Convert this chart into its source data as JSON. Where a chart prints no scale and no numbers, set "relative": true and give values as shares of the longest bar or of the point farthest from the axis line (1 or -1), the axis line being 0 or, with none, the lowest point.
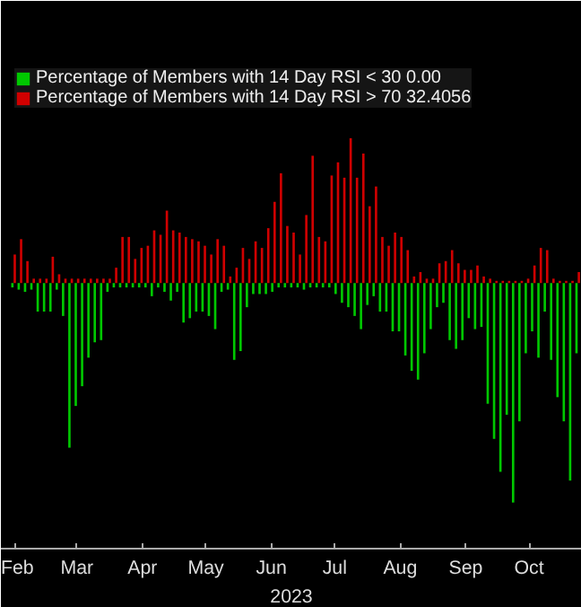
{
  "chart_data": {
    "type": "bar",
    "relative": true,
    "xlabel": "2023",
    "legend": "top left",
    "grid": false,
    "x": [
      "2023-02-14",
      "2023-02-17",
      "2023-02-20",
      "2023-02-23",
      "2023-02-26",
      "2023-03-01",
      "2023-03-04",
      "2023-03-07",
      "2023-03-10",
      "2023-03-13",
      "2023-03-16",
      "2023-03-19",
      "2023-03-22",
      "2023-03-25",
      "2023-03-28",
      "2023-03-31",
      "2023-04-03",
      "2023-04-06",
      "2023-04-09",
      "2023-04-12",
      "2023-04-15",
      "2023-04-18",
      "2023-04-21",
      "2023-04-24",
      "2023-04-27",
      "2023-04-30",
      "2023-05-03",
      "2023-05-06",
      "2023-05-09",
      "2023-05-12",
      "2023-05-15",
      "2023-05-18",
      "2023-05-21",
      "2023-05-24",
      "2023-05-27",
      "2023-05-30",
      "2023-06-02",
      "2023-06-05",
      "2023-06-08",
      "2023-06-11",
      "2023-06-14",
      "2023-06-17",
      "2023-06-20",
      "2023-06-23",
      "2023-06-26",
      "2023-06-29",
      "2023-07-02",
      "2023-07-05",
      "2023-07-08",
      "2023-07-11",
      "2023-07-14",
      "2023-07-17",
      "2023-07-20",
      "2023-07-23",
      "2023-07-26",
      "2023-07-29",
      "2023-08-01",
      "2023-08-04",
      "2023-08-07",
      "2023-08-10",
      "2023-08-13",
      "2023-08-16",
      "2023-08-19",
      "2023-08-22",
      "2023-08-25",
      "2023-08-28",
      "2023-08-31",
      "2023-09-03",
      "2023-09-06",
      "2023-09-09",
      "2023-09-12",
      "2023-09-15",
      "2023-09-18",
      "2023-09-21",
      "2023-09-24",
      "2023-09-27",
      "2023-09-30",
      "2023-10-03",
      "2023-10-06",
      "2023-10-09",
      "2023-10-12",
      "2023-10-15",
      "2023-10-18",
      "2023-10-21",
      "2023-10-24",
      "2023-10-27",
      "2023-10-30",
      "2023-11-02",
      "2023-11-05",
      "2023-11-08"
    ],
    "xlim": [
      "2023-02-08",
      "2023-11-10"
    ],
    "xticks": [
      {
        "value": "2023-02-15",
        "label": "Feb"
      },
      {
        "value": "2023-03-16",
        "label": "Mar"
      },
      {
        "value": "2023-04-16",
        "label": "Apr"
      },
      {
        "value": "2023-05-16",
        "label": "May"
      },
      {
        "value": "2023-06-16",
        "label": "Jun"
      },
      {
        "value": "2023-07-16",
        "label": "Jul"
      },
      {
        "value": "2023-08-16",
        "label": "Aug"
      },
      {
        "value": "2023-09-16",
        "label": "Sep"
      },
      {
        "value": "2023-10-16",
        "label": "Oct"
      }
    ],
    "series": [
      {
        "name": "Percentage of Members with 14 Day RSI < 30 0.00",
        "color": "#00c800",
        "values": [
          -0.02,
          -0.03,
          -0.04,
          -0.03,
          -0.13,
          -0.13,
          -0.13,
          -0.03,
          -0.15,
          -0.75,
          -0.56,
          -0.47,
          -0.34,
          -0.27,
          -0.26,
          -0.04,
          -0.02,
          -0.02,
          -0.02,
          -0.02,
          -0.02,
          -0.02,
          -0.06,
          -0.02,
          -0.04,
          -0.08,
          -0.04,
          -0.18,
          -0.16,
          -0.13,
          -0.13,
          -0.15,
          -0.21,
          -0.04,
          -0.03,
          -0.35,
          -0.31,
          -0.11,
          -0.05,
          -0.05,
          -0.05,
          -0.04,
          -0.02,
          -0.02,
          -0.02,
          -0.02,
          -0.03,
          -0.02,
          -0.02,
          -0.02,
          -0.02,
          -0.05,
          -0.09,
          -0.11,
          -0.15,
          -0.21,
          -0.1,
          -0.06,
          -0.13,
          -0.13,
          -0.22,
          -0.22,
          -0.33,
          -0.4,
          -0.44,
          -0.32,
          -0.21,
          -0.11,
          -0.09,
          -0.26,
          -0.3,
          -0.26,
          -0.16,
          -0.21,
          -0.2,
          -0.55,
          -0.71,
          -0.86,
          -0.6,
          -1,
          -0.63,
          -0.32,
          -0.22,
          -0.34,
          -0.13,
          -0.35,
          -0.52,
          -0.63,
          -0.9,
          -0.32
        ]
      },
      {
        "name": "Percentage of Members with 14 Day RSI > 70 32.4056",
        "color": "#d00000",
        "values": [
          0.13,
          0.2,
          0.1,
          0.02,
          0.02,
          0.02,
          0.12,
          0.04,
          0.02,
          0.02,
          0.02,
          0.02,
          0.02,
          0.02,
          0.02,
          0.02,
          0.07,
          0.21,
          0.21,
          0.11,
          0.16,
          0.17,
          0.24,
          0.22,
          0.33,
          0.24,
          0.23,
          0.21,
          0.2,
          0.19,
          0.17,
          0.13,
          0.2,
          0.17,
          0.03,
          0.07,
          0.16,
          0.11,
          0.19,
          0.16,
          0.25,
          0.37,
          0.5,
          0.26,
          0.23,
          0.13,
          0.31,
          0.58,
          0.21,
          0.19,
          0.49,
          0.55,
          0.48,
          0.66,
          0.48,
          0.59,
          0.35,
          0.44,
          0.21,
          0.17,
          0.23,
          0.21,
          0.15,
          0.03,
          0.05,
          0.02,
          0.02,
          0.09,
          0.1,
          0.15,
          0.09,
          0.06,
          0.06,
          0.08,
          0.03,
          0.02,
          0.01,
          0.01,
          0.01,
          0.01,
          0.01,
          0.02,
          0.08,
          0.16,
          0.15,
          0.02,
          0.01,
          0.01,
          0.01,
          0.05
        ]
      }
    ]
  }
}
